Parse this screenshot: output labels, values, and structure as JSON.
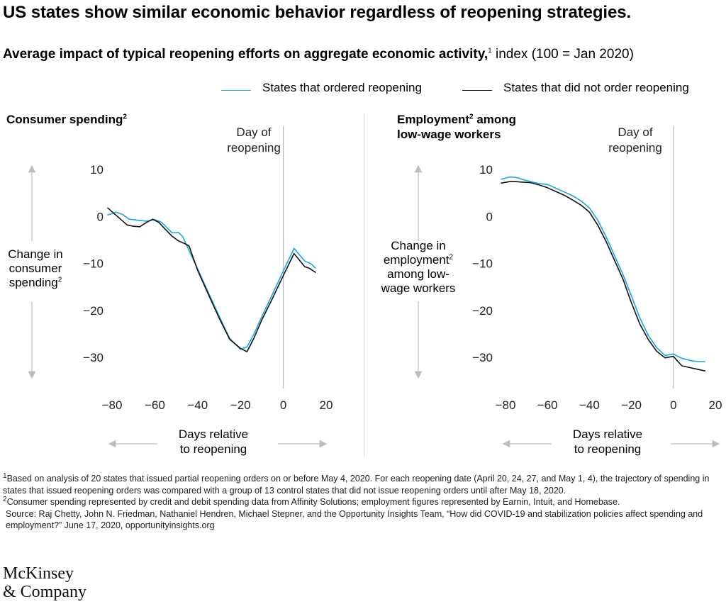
{
  "title": "US states show similar economic behavior regardless of reopening strategies.",
  "subtitle": {
    "bold": "Average impact of typical reopening efforts on aggregate economic activity,",
    "sup": "1",
    "rest": " index (100 = Jan 2020)"
  },
  "legend": {
    "ordered": "States that ordered reopening",
    "not_ordered": "States that did not order reopening"
  },
  "colors": {
    "ordered": "#1aa7e6",
    "not_ordered": "#111111",
    "axis": "#aaaaaa",
    "arrow": "#bdbdbd"
  },
  "panels": [
    {
      "title_main": "Consumer spending",
      "title_sup": "2",
      "title_line2": "",
      "y_axis_label_lines": [
        "Change in",
        "consumer",
        "spending"
      ],
      "y_axis_label_sup": "2",
      "reopening_label_lines": [
        "Day of",
        "reopening"
      ],
      "x_title_lines": [
        "Days relative",
        "to reopening"
      ]
    },
    {
      "title_main": "Employment",
      "title_sup": "2",
      "title_rest": " among",
      "title_line2": "low-wage workers",
      "y_axis_label_lines": [
        "Change in",
        "employment",
        "among low-",
        "wage workers"
      ],
      "y_axis_label_sup": "2",
      "reopening_label_lines": [
        "Day of",
        "reopening"
      ],
      "x_title_lines": [
        "Days relative",
        "to reopening"
      ]
    }
  ],
  "chart_data": [
    {
      "type": "line",
      "title": "Consumer spending",
      "xlabel": "Days relative to reopening",
      "ylabel": "Change in consumer spending",
      "xlim": [
        -82,
        20
      ],
      "ylim": [
        -35,
        12
      ],
      "x_ticks": [
        -80,
        -60,
        -40,
        -20,
        0,
        20
      ],
      "x_tick_labels": [
        "−80",
        "−60",
        "−40",
        "−20",
        "0",
        "20"
      ],
      "y_ticks": [
        10,
        0,
        -10,
        -20,
        -30
      ],
      "y_tick_labels": [
        "10",
        "0",
        "−10",
        "−20",
        "−30"
      ],
      "reference_x": 0,
      "series": [
        {
          "name": "States that ordered reopening",
          "x": [
            -82,
            -78,
            -75,
            -72,
            -68,
            -64,
            -60,
            -57,
            -55,
            -52,
            -49,
            -47,
            -45,
            -40,
            -35,
            -30,
            -25,
            -20,
            -17,
            -14,
            -10,
            -5,
            0,
            5,
            10,
            13,
            15
          ],
          "y": [
            0.3,
            0.9,
            0.4,
            -0.6,
            -0.8,
            -1.0,
            -0.7,
            -1.2,
            -2.1,
            -3.5,
            -3.4,
            -4.3,
            -6.3,
            -11.2,
            -16.2,
            -21.2,
            -26.0,
            -28.3,
            -27.8,
            -25.3,
            -21.3,
            -16.5,
            -11.6,
            -6.8,
            -9.5,
            -10.1,
            -11.0
          ]
        },
        {
          "name": "States that did not order reopening",
          "x": [
            -82,
            -79,
            -76,
            -73,
            -70,
            -67,
            -64,
            -61,
            -58,
            -55,
            -52,
            -49,
            -46,
            -44,
            -40,
            -35,
            -30,
            -25,
            -20,
            -17,
            -14,
            -10,
            -5,
            0,
            5,
            10,
            12,
            15
          ],
          "y": [
            1.8,
            0.6,
            -0.6,
            -1.8,
            -2.1,
            -2.2,
            -1.3,
            -0.6,
            -1.3,
            -2.8,
            -4.2,
            -5.2,
            -5.8,
            -6.3,
            -11.5,
            -16.6,
            -21.6,
            -26.2,
            -28.1,
            -28.8,
            -26.2,
            -22.0,
            -17.4,
            -12.6,
            -7.9,
            -10.7,
            -11.0,
            -11.9
          ]
        }
      ]
    },
    {
      "type": "line",
      "title": "Employment among low-wage workers",
      "xlabel": "Days relative to reopening",
      "ylabel": "Change in employment among low-wage workers",
      "xlim": [
        -82,
        20
      ],
      "ylim": [
        -35,
        12
      ],
      "x_ticks": [
        -80,
        -60,
        -40,
        -20,
        0,
        20
      ],
      "x_tick_labels": [
        "−80",
        "−60",
        "−40",
        "−20",
        "0",
        "20"
      ],
      "y_ticks": [
        10,
        0,
        -10,
        -20,
        -30
      ],
      "y_tick_labels": [
        "10",
        "0",
        "−10",
        "−20",
        "−30"
      ],
      "reference_x": 0,
      "series": [
        {
          "name": "States that ordered reopening",
          "x": [
            -82,
            -78,
            -75,
            -72,
            -68,
            -64,
            -60,
            -56,
            -52,
            -48,
            -44,
            -40,
            -36,
            -32,
            -28,
            -24,
            -20,
            -16,
            -12,
            -8,
            -4,
            0,
            4,
            8,
            12,
            15
          ],
          "y": [
            7.9,
            8.4,
            8.3,
            7.9,
            7.4,
            7.0,
            6.8,
            6.0,
            5.2,
            4.4,
            3.3,
            1.8,
            -0.8,
            -4.4,
            -8.4,
            -12.4,
            -16.9,
            -21.6,
            -25.3,
            -27.9,
            -29.6,
            -29.3,
            -30.2,
            -30.7,
            -30.9,
            -30.9
          ]
        },
        {
          "name": "States that did not order reopening",
          "x": [
            -82,
            -78,
            -75,
            -72,
            -68,
            -64,
            -60,
            -56,
            -52,
            -48,
            -44,
            -40,
            -36,
            -32,
            -28,
            -24,
            -20,
            -16,
            -12,
            -8,
            -4,
            0,
            4,
            8,
            12,
            15
          ],
          "y": [
            7.1,
            7.4,
            7.4,
            7.3,
            7.2,
            6.7,
            6.1,
            5.3,
            4.5,
            3.5,
            2.4,
            0.9,
            -1.9,
            -5.4,
            -9.4,
            -13.4,
            -18.4,
            -22.9,
            -26.2,
            -28.7,
            -30.1,
            -29.8,
            -31.8,
            -32.2,
            -32.6,
            -32.9
          ]
        }
      ]
    }
  ],
  "footnotes": {
    "n1_sup": "1",
    "n1": "Based on analysis of 20 states that issued partial reopening orders on or before May 4, 2020. For each reopening date (April 20, 24, 27, and May 1, 4), the trajectory of spending in states that issued reopening orders was compared with a group of 13 control states that did not issue reopening orders until after May 18, 2020.",
    "n2_sup": "2",
    "n2": "Consumer spending represented by credit and debit spending data from Affinity Solutions; employment figures represented by Earnin, Intuit, and Homebase.",
    "source": "Source: Raj Chetty, John N. Friedman, Nathaniel Hendren, Michael Stepner, and the Opportunity Insights Team, “How did COVID-19 and stabilization policies affect spending and employment?” June 17, 2020, opportunityinsights.org"
  },
  "logo": {
    "line1": "McKinsey",
    "line2": "& Company"
  }
}
